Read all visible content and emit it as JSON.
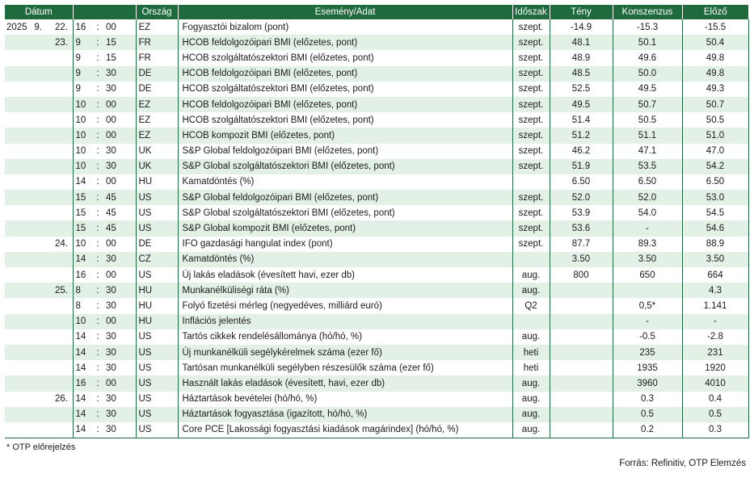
{
  "headers": [
    "Dátum",
    "Ország",
    "Esemény/Adat",
    "Időszak",
    "Tény",
    "Konszenzus",
    "Előző"
  ],
  "rows": [
    {
      "year": "2025",
      "month": "9.",
      "day": "22.",
      "hh": "16",
      "mm": "00",
      "country": "EZ",
      "event": "Fogyasztói bizalom (pont)",
      "period": "szept.",
      "actual": "-14.9",
      "consensus": "-15.3",
      "previous": "-15.5"
    },
    {
      "year": "",
      "month": "",
      "day": "23.",
      "hh": "9",
      "mm": "15",
      "country": "FR",
      "event": "HCOB feldolgozóipari BMI (előzetes, pont)",
      "period": "szept.",
      "actual": "48.1",
      "consensus": "50.1",
      "previous": "50.4"
    },
    {
      "year": "",
      "month": "",
      "day": "",
      "hh": "9",
      "mm": "15",
      "country": "FR",
      "event": "HCOB szolgáltatószektori BMI (előzetes, pont)",
      "period": "szept.",
      "actual": "48.9",
      "consensus": "49.6",
      "previous": "49.8"
    },
    {
      "year": "",
      "month": "",
      "day": "",
      "hh": "9",
      "mm": "30",
      "country": "DE",
      "event": "HCOB feldolgozóipari BMI (előzetes, pont)",
      "period": "szept.",
      "actual": "48.5",
      "consensus": "50.0",
      "previous": "49.8"
    },
    {
      "year": "",
      "month": "",
      "day": "",
      "hh": "9",
      "mm": "30",
      "country": "DE",
      "event": "HCOB szolgáltatószektori BMI (előzetes, pont)",
      "period": "szept.",
      "actual": "52.5",
      "consensus": "49.5",
      "previous": "49.3"
    },
    {
      "year": "",
      "month": "",
      "day": "",
      "hh": "10",
      "mm": "00",
      "country": "EZ",
      "event": "HCOB feldolgozóipari BMI (előzetes, pont)",
      "period": "szept.",
      "actual": "49.5",
      "consensus": "50.7",
      "previous": "50.7"
    },
    {
      "year": "",
      "month": "",
      "day": "",
      "hh": "10",
      "mm": "00",
      "country": "EZ",
      "event": "HCOB szolgáltatószektori BMI (előzetes, pont)",
      "period": "szept.",
      "actual": "51.4",
      "consensus": "50.5",
      "previous": "50.5"
    },
    {
      "year": "",
      "month": "",
      "day": "",
      "hh": "10",
      "mm": "00",
      "country": "EZ",
      "event": "HCOB kompozit BMI (előzetes, pont)",
      "period": "szept.",
      "actual": "51.2",
      "consensus": "51.1",
      "previous": "51.0"
    },
    {
      "year": "",
      "month": "",
      "day": "",
      "hh": "10",
      "mm": "30",
      "country": "UK",
      "event": "S&P Global feldolgozóipari BMI (előzetes, pont)",
      "period": "szept.",
      "actual": "46.2",
      "consensus": "47.1",
      "previous": "47.0"
    },
    {
      "year": "",
      "month": "",
      "day": "",
      "hh": "10",
      "mm": "30",
      "country": "UK",
      "event": "S&P Global szolgáltatószektori BMI (előzetes, pont)",
      "period": "szept.",
      "actual": "51.9",
      "consensus": "53.5",
      "previous": "54.2"
    },
    {
      "year": "",
      "month": "",
      "day": "",
      "hh": "14",
      "mm": "00",
      "country": "HU",
      "event": "Kamatdöntés (%)",
      "period": "",
      "actual": "6.50",
      "consensus": "6.50",
      "previous": "6.50"
    },
    {
      "year": "",
      "month": "",
      "day": "",
      "hh": "15",
      "mm": "45",
      "country": "US",
      "event": "S&P Global feldolgozóipari BMI (előzetes, pont)",
      "period": "szept.",
      "actual": "52.0",
      "consensus": "52.0",
      "previous": "53.0"
    },
    {
      "year": "",
      "month": "",
      "day": "",
      "hh": "15",
      "mm": "45",
      "country": "US",
      "event": "S&P Global szolgáltatószektori BMI (előzetes, pont)",
      "period": "szept.",
      "actual": "53.9",
      "consensus": "54.0",
      "previous": "54.5"
    },
    {
      "year": "",
      "month": "",
      "day": "",
      "hh": "15",
      "mm": "45",
      "country": "US",
      "event": "S&P Global kompozit BMI (előzetes, pont)",
      "period": "szept.",
      "actual": "53.6",
      "consensus": "-",
      "previous": "54.6"
    },
    {
      "year": "",
      "month": "",
      "day": "24.",
      "hh": "10",
      "mm": "00",
      "country": "DE",
      "event": "IFO gazdasági hangulat index (pont)",
      "period": "szept.",
      "actual": "87.7",
      "consensus": "89.3",
      "previous": "88.9"
    },
    {
      "year": "",
      "month": "",
      "day": "",
      "hh": "14",
      "mm": "30",
      "country": "CZ",
      "event": "Kamatdöntés (%)",
      "period": "",
      "actual": "3.50",
      "consensus": "3.50",
      "previous": "3.50"
    },
    {
      "year": "",
      "month": "",
      "day": "",
      "hh": "16",
      "mm": "00",
      "country": "US",
      "event": "Új lakás eladások (évesített havi, ezer db)",
      "period": "aug.",
      "actual": "800",
      "consensus": "650",
      "previous": "664"
    },
    {
      "year": "",
      "month": "",
      "day": "25.",
      "hh": "8",
      "mm": "30",
      "country": "HU",
      "event": "Munkanélküliségi ráta (%)",
      "period": "aug.",
      "actual": "",
      "consensus": "",
      "previous": "4.3"
    },
    {
      "year": "",
      "month": "",
      "day": "",
      "hh": "8",
      "mm": "30",
      "country": "HU",
      "event": "Folyó fizetési mérleg (negyedéves, milliárd euró)",
      "period": "Q2",
      "actual": "",
      "consensus": "0,5*",
      "previous": "1.141"
    },
    {
      "year": "",
      "month": "",
      "day": "",
      "hh": "10",
      "mm": "00",
      "country": "HU",
      "event": "Inflációs jelentés",
      "period": "",
      "actual": "",
      "consensus": "-",
      "previous": "-"
    },
    {
      "year": "",
      "month": "",
      "day": "",
      "hh": "14",
      "mm": "30",
      "country": "US",
      "event": "Tartós cikkek rendelésállománya (hó/hó, %)",
      "period": "aug.",
      "actual": "",
      "consensus": "-0.5",
      "previous": "-2.8"
    },
    {
      "year": "",
      "month": "",
      "day": "",
      "hh": "14",
      "mm": "30",
      "country": "US",
      "event": "Új munkanélküli segélykérelmek száma (ezer fő)",
      "period": "heti",
      "actual": "",
      "consensus": "235",
      "previous": "231"
    },
    {
      "year": "",
      "month": "",
      "day": "",
      "hh": "14",
      "mm": "30",
      "country": "US",
      "event": "Tartósan munkanélküli segélyben részesülők száma (ezer fő)",
      "period": "heti",
      "actual": "",
      "consensus": "1935",
      "previous": "1920"
    },
    {
      "year": "",
      "month": "",
      "day": "",
      "hh": "16",
      "mm": "00",
      "country": "US",
      "event": "Használt lakás eladások (évesített, havi, ezer db)",
      "period": "aug.",
      "actual": "",
      "consensus": "3960",
      "previous": "4010"
    },
    {
      "year": "",
      "month": "",
      "day": "26.",
      "hh": "14",
      "mm": "30",
      "country": "US",
      "event": "Háztartások bevételei (hó/hó, %)",
      "period": "aug.",
      "actual": "",
      "consensus": "0.3",
      "previous": "0.4"
    },
    {
      "year": "",
      "month": "",
      "day": "",
      "hh": "14",
      "mm": "30",
      "country": "US",
      "event": "Háztartások fogyasztása (igazított, hó/hó, %)",
      "period": "aug.",
      "actual": "",
      "consensus": "0.5",
      "previous": "0.5"
    },
    {
      "year": "",
      "month": "",
      "day": "",
      "hh": "14",
      "mm": "30",
      "country": "US",
      "event": "Core PCE [Lakossági fogyasztási kiadások magárindex] (hó/hó, %)",
      "period": "aug.",
      "actual": "",
      "consensus": "0.2",
      "previous": "0.3"
    }
  ],
  "time_separator": ":",
  "footnote": "* OTP előrejelzés",
  "source": "Forrás: Refinitiv, OTP Elemzés",
  "colors": {
    "header": "#1f6b3e",
    "stripe": "#e3f0e6"
  }
}
